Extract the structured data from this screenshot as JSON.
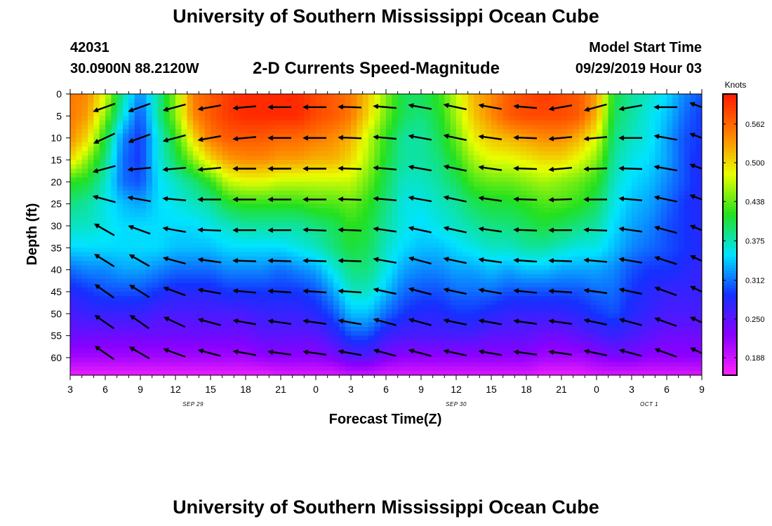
{
  "header": {
    "title": "University of Southern Mississippi Ocean Cube",
    "station_id": "42031",
    "station_coords": "30.0900N 88.2120W",
    "plot_title": "2-D Currents Speed-Magnitude",
    "model_start_label": "Model Start Time",
    "model_start_value": "09/29/2019 Hour 03"
  },
  "footer": {
    "title": "University of Southern Mississippi Ocean Cube"
  },
  "chart_data": {
    "type": "heatmap",
    "title": "2-D Currents Speed-Magnitude",
    "xlabel": "Forecast Time(Z)",
    "ylabel": "Depth (ft)",
    "x_hours_range": [
      0,
      54
    ],
    "x_tick_labels": [
      "3",
      "6",
      "9",
      "12",
      "15",
      "18",
      "21",
      "0",
      "3",
      "6",
      "9",
      "12",
      "15",
      "18",
      "21",
      "0",
      "3",
      "6",
      "9"
    ],
    "date_labels": [
      {
        "text": "SEP 29",
        "hour": 10.5
      },
      {
        "text": "SEP 30",
        "hour": 33
      },
      {
        "text": "OCT 1",
        "hour": 49.5
      }
    ],
    "y_range": [
      0,
      64
    ],
    "y_ticks": [
      0,
      5,
      10,
      15,
      20,
      25,
      30,
      35,
      40,
      45,
      50,
      55,
      60
    ],
    "colorbar": {
      "label": "Knots",
      "range": [
        0.16,
        0.61
      ],
      "ticks": [
        "0.562",
        "0.500",
        "0.438",
        "0.375",
        "0.312",
        "0.250",
        "0.188"
      ],
      "tick_values": [
        0.562,
        0.5,
        0.438,
        0.375,
        0.312,
        0.25,
        0.188
      ],
      "colors": [
        "#ff22ff",
        "#8a00ff",
        "#1530ff",
        "#00e4ff",
        "#22e020",
        "#e8ff00",
        "#ff8000",
        "#ff1a00"
      ]
    },
    "speed_grid_times": [
      0,
      1.5,
      3,
      4.5,
      6,
      7.5,
      9,
      10.5,
      12,
      13.5,
      15,
      16.5,
      18,
      19.5,
      21,
      22.5,
      24,
      25.5,
      27,
      28.5,
      30,
      31.5,
      33,
      34.5,
      36,
      37.5,
      39,
      40.5,
      42,
      43.5,
      45,
      46.5,
      48,
      49.5,
      51,
      52.5,
      54
    ],
    "speed_grid_depths": [
      0,
      5,
      10,
      15,
      20,
      25,
      30,
      35,
      40,
      45,
      50,
      55,
      60,
      64
    ],
    "speed_knots": [
      [
        0.55,
        0.54,
        0.48,
        0.38,
        0.32,
        0.38,
        0.45,
        0.55,
        0.57,
        0.59,
        0.6,
        0.6,
        0.6,
        0.6,
        0.58,
        0.57,
        0.55,
        0.51,
        0.45,
        0.4,
        0.4,
        0.42,
        0.47,
        0.52,
        0.54,
        0.57,
        0.58,
        0.59,
        0.58,
        0.57,
        0.53,
        0.41,
        0.38,
        0.37,
        0.35,
        0.32,
        0.3
      ],
      [
        0.55,
        0.53,
        0.45,
        0.36,
        0.3,
        0.38,
        0.45,
        0.54,
        0.57,
        0.59,
        0.6,
        0.6,
        0.6,
        0.6,
        0.58,
        0.57,
        0.55,
        0.5,
        0.44,
        0.4,
        0.39,
        0.41,
        0.46,
        0.51,
        0.54,
        0.57,
        0.58,
        0.58,
        0.58,
        0.57,
        0.52,
        0.4,
        0.38,
        0.36,
        0.34,
        0.31,
        0.29
      ],
      [
        0.54,
        0.5,
        0.41,
        0.32,
        0.29,
        0.36,
        0.42,
        0.5,
        0.55,
        0.57,
        0.57,
        0.57,
        0.56,
        0.56,
        0.55,
        0.54,
        0.52,
        0.47,
        0.42,
        0.38,
        0.38,
        0.4,
        0.44,
        0.49,
        0.51,
        0.52,
        0.53,
        0.54,
        0.54,
        0.52,
        0.48,
        0.39,
        0.37,
        0.36,
        0.33,
        0.3,
        0.29
      ],
      [
        0.5,
        0.45,
        0.39,
        0.31,
        0.29,
        0.36,
        0.4,
        0.45,
        0.5,
        0.53,
        0.54,
        0.54,
        0.53,
        0.53,
        0.52,
        0.52,
        0.5,
        0.46,
        0.41,
        0.38,
        0.38,
        0.39,
        0.42,
        0.46,
        0.48,
        0.48,
        0.49,
        0.5,
        0.5,
        0.48,
        0.45,
        0.38,
        0.36,
        0.35,
        0.33,
        0.3,
        0.28
      ],
      [
        0.42,
        0.41,
        0.37,
        0.31,
        0.3,
        0.35,
        0.37,
        0.39,
        0.42,
        0.47,
        0.48,
        0.48,
        0.47,
        0.47,
        0.47,
        0.47,
        0.47,
        0.44,
        0.4,
        0.37,
        0.37,
        0.38,
        0.4,
        0.43,
        0.44,
        0.44,
        0.45,
        0.46,
        0.45,
        0.44,
        0.42,
        0.37,
        0.35,
        0.34,
        0.32,
        0.3,
        0.28
      ],
      [
        0.39,
        0.38,
        0.36,
        0.34,
        0.33,
        0.35,
        0.36,
        0.37,
        0.38,
        0.41,
        0.42,
        0.42,
        0.42,
        0.42,
        0.43,
        0.43,
        0.44,
        0.42,
        0.39,
        0.36,
        0.36,
        0.37,
        0.38,
        0.4,
        0.41,
        0.41,
        0.42,
        0.43,
        0.43,
        0.42,
        0.4,
        0.36,
        0.34,
        0.33,
        0.31,
        0.29,
        0.28
      ],
      [
        0.37,
        0.37,
        0.36,
        0.35,
        0.35,
        0.35,
        0.35,
        0.35,
        0.36,
        0.37,
        0.38,
        0.38,
        0.38,
        0.38,
        0.39,
        0.4,
        0.42,
        0.41,
        0.38,
        0.36,
        0.35,
        0.36,
        0.37,
        0.38,
        0.39,
        0.39,
        0.4,
        0.41,
        0.4,
        0.39,
        0.38,
        0.35,
        0.33,
        0.32,
        0.3,
        0.29,
        0.28
      ],
      [
        0.35,
        0.35,
        0.35,
        0.35,
        0.35,
        0.35,
        0.34,
        0.34,
        0.34,
        0.35,
        0.35,
        0.35,
        0.35,
        0.36,
        0.37,
        0.39,
        0.41,
        0.4,
        0.37,
        0.35,
        0.34,
        0.34,
        0.35,
        0.36,
        0.37,
        0.37,
        0.38,
        0.38,
        0.37,
        0.36,
        0.36,
        0.34,
        0.32,
        0.31,
        0.3,
        0.29,
        0.28
      ],
      [
        0.31,
        0.32,
        0.32,
        0.33,
        0.33,
        0.32,
        0.31,
        0.31,
        0.31,
        0.32,
        0.32,
        0.32,
        0.31,
        0.32,
        0.33,
        0.36,
        0.39,
        0.39,
        0.36,
        0.33,
        0.32,
        0.32,
        0.33,
        0.33,
        0.34,
        0.33,
        0.34,
        0.34,
        0.33,
        0.33,
        0.33,
        0.32,
        0.3,
        0.29,
        0.29,
        0.28,
        0.27
      ],
      [
        0.28,
        0.29,
        0.3,
        0.3,
        0.3,
        0.29,
        0.28,
        0.28,
        0.28,
        0.29,
        0.29,
        0.29,
        0.29,
        0.29,
        0.3,
        0.33,
        0.37,
        0.37,
        0.34,
        0.31,
        0.3,
        0.3,
        0.31,
        0.31,
        0.31,
        0.3,
        0.3,
        0.3,
        0.3,
        0.3,
        0.31,
        0.31,
        0.29,
        0.28,
        0.27,
        0.27,
        0.27
      ],
      [
        0.26,
        0.27,
        0.27,
        0.27,
        0.27,
        0.26,
        0.26,
        0.26,
        0.26,
        0.26,
        0.26,
        0.27,
        0.27,
        0.27,
        0.28,
        0.3,
        0.34,
        0.34,
        0.31,
        0.29,
        0.28,
        0.28,
        0.29,
        0.29,
        0.28,
        0.27,
        0.27,
        0.27,
        0.27,
        0.28,
        0.29,
        0.3,
        0.28,
        0.27,
        0.26,
        0.26,
        0.26
      ],
      [
        0.24,
        0.24,
        0.24,
        0.24,
        0.24,
        0.24,
        0.24,
        0.24,
        0.24,
        0.24,
        0.24,
        0.25,
        0.25,
        0.25,
        0.25,
        0.27,
        0.3,
        0.3,
        0.27,
        0.26,
        0.26,
        0.26,
        0.26,
        0.26,
        0.25,
        0.25,
        0.25,
        0.24,
        0.24,
        0.25,
        0.26,
        0.27,
        0.26,
        0.25,
        0.24,
        0.24,
        0.24
      ],
      [
        0.21,
        0.21,
        0.21,
        0.21,
        0.21,
        0.21,
        0.21,
        0.21,
        0.21,
        0.21,
        0.21,
        0.22,
        0.22,
        0.22,
        0.22,
        0.23,
        0.25,
        0.25,
        0.23,
        0.22,
        0.22,
        0.22,
        0.22,
        0.22,
        0.22,
        0.22,
        0.22,
        0.21,
        0.21,
        0.21,
        0.22,
        0.23,
        0.23,
        0.22,
        0.22,
        0.22,
        0.22
      ],
      [
        0.17,
        0.17,
        0.17,
        0.17,
        0.17,
        0.17,
        0.17,
        0.17,
        0.17,
        0.17,
        0.17,
        0.17,
        0.18,
        0.18,
        0.18,
        0.18,
        0.19,
        0.19,
        0.18,
        0.18,
        0.18,
        0.18,
        0.18,
        0.18,
        0.18,
        0.18,
        0.18,
        0.17,
        0.17,
        0.17,
        0.18,
        0.18,
        0.18,
        0.18,
        0.18,
        0.18,
        0.18
      ]
    ],
    "vector_times": [
      3,
      6,
      9,
      12,
      15,
      18,
      21,
      24,
      27,
      30,
      33,
      36,
      39,
      42,
      45,
      48,
      51,
      54
    ],
    "vector_depths": [
      3,
      10,
      17,
      24,
      31,
      38,
      45,
      52,
      59
    ],
    "vector_direction_deg": [
      [
        200,
        200,
        195,
        190,
        185,
        180,
        180,
        178,
        175,
        170,
        168,
        170,
        175,
        190,
        195,
        190,
        180,
        160
      ],
      [
        205,
        200,
        195,
        190,
        185,
        180,
        180,
        178,
        175,
        170,
        168,
        172,
        178,
        185,
        185,
        180,
        170,
        160
      ],
      [
        195,
        185,
        185,
        185,
        180,
        180,
        180,
        178,
        175,
        170,
        168,
        172,
        178,
        185,
        182,
        178,
        170,
        160
      ],
      [
        165,
        170,
        175,
        180,
        180,
        180,
        180,
        178,
        175,
        170,
        168,
        172,
        178,
        182,
        180,
        175,
        168,
        160
      ],
      [
        150,
        160,
        170,
        178,
        180,
        180,
        178,
        178,
        172,
        168,
        168,
        172,
        178,
        180,
        178,
        172,
        165,
        158
      ],
      [
        148,
        150,
        165,
        172,
        178,
        178,
        178,
        178,
        170,
        165,
        168,
        172,
        176,
        178,
        175,
        170,
        162,
        155
      ],
      [
        145,
        148,
        160,
        170,
        175,
        176,
        176,
        176,
        168,
        165,
        168,
        170,
        174,
        176,
        172,
        168,
        160,
        155
      ],
      [
        145,
        145,
        155,
        165,
        170,
        172,
        172,
        170,
        165,
        165,
        168,
        170,
        172,
        172,
        168,
        165,
        160,
        155
      ],
      [
        145,
        150,
        160,
        165,
        170,
        172,
        172,
        170,
        165,
        165,
        168,
        170,
        172,
        172,
        168,
        165,
        160,
        155
      ]
    ]
  }
}
